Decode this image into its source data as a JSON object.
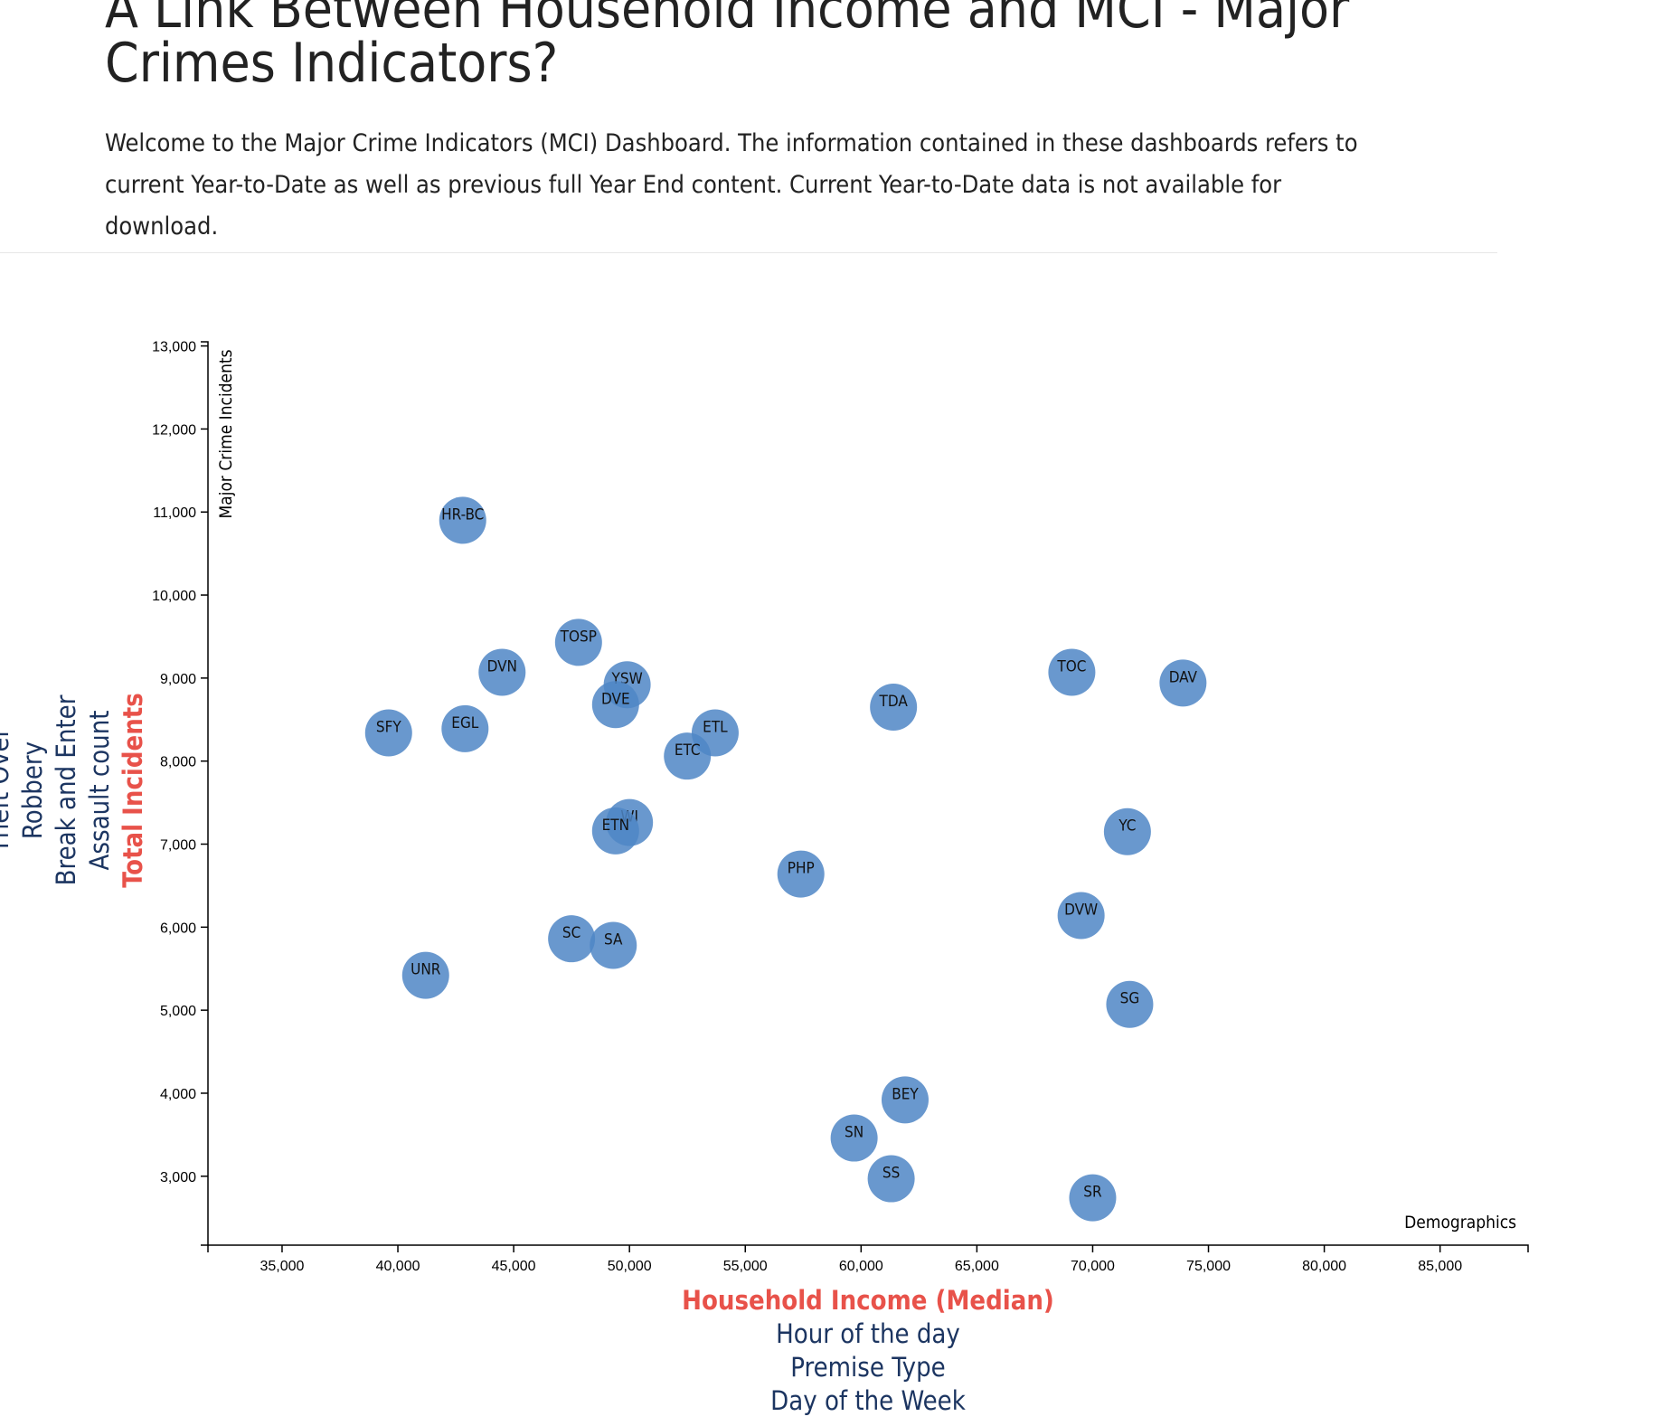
{
  "page": {
    "title": "A Link Between Household Income and MCI - Major Crimes Indicators?",
    "intro": "Welcome to the Major Crime Indicators (MCI) Dashboard. The information contained in these dashboards refers to current Year-to-Date as well as previous full Year End content. Current Year-to-Date data is not available for download."
  },
  "colors": {
    "bubble": "#4f86c6",
    "active_axis": "#e8524a",
    "inactive_axis": "#1c3561",
    "axis": "#000000"
  },
  "x_axis_options": [
    {
      "label": "Household Income (Median)",
      "active": true
    },
    {
      "label": "Hour of the day",
      "active": false
    },
    {
      "label": "Premise Type",
      "active": false
    },
    {
      "label": "Day of the Week",
      "active": false
    }
  ],
  "y_axis_options": [
    {
      "label": "Total Incidents",
      "active": true
    },
    {
      "label": "Assault count",
      "active": false
    },
    {
      "label": "Break and Enter",
      "active": false
    },
    {
      "label": "Robbery",
      "active": false
    },
    {
      "label": "Theft Over",
      "active": false
    }
  ],
  "chart_data": {
    "type": "scatter",
    "title": "",
    "xlabel": "Demographics",
    "ylabel": "Major Crime Incidents",
    "xlim": [
      31800,
      88800
    ],
    "ylim": [
      2170,
      13050
    ],
    "x_ticks": [
      35000,
      40000,
      45000,
      50000,
      55000,
      60000,
      65000,
      70000,
      75000,
      80000,
      85000
    ],
    "y_ticks": [
      3000,
      4000,
      5000,
      6000,
      7000,
      8000,
      9000,
      10000,
      11000,
      12000,
      13000
    ],
    "grid": false,
    "points": [
      {
        "label": "HR-BC",
        "x": 42800,
        "y": 10900
      },
      {
        "label": "TOSP",
        "x": 47800,
        "y": 9430
      },
      {
        "label": "DVN",
        "x": 44500,
        "y": 9070
      },
      {
        "label": "YSW",
        "x": 49900,
        "y": 8920
      },
      {
        "label": "DVE",
        "x": 49400,
        "y": 8680
      },
      {
        "label": "SFY",
        "x": 39600,
        "y": 8340
      },
      {
        "label": "EGL",
        "x": 42900,
        "y": 8390
      },
      {
        "label": "ETL",
        "x": 53700,
        "y": 8340
      },
      {
        "label": "ETC",
        "x": 52500,
        "y": 8060
      },
      {
        "label": "WI",
        "x": 50000,
        "y": 7260
      },
      {
        "label": "ETN",
        "x": 49400,
        "y": 7160
      },
      {
        "label": "PHP",
        "x": 57400,
        "y": 6640
      },
      {
        "label": "SC",
        "x": 47500,
        "y": 5860
      },
      {
        "label": "SA",
        "x": 49300,
        "y": 5780
      },
      {
        "label": "UNR",
        "x": 41200,
        "y": 5420
      },
      {
        "label": "TDA",
        "x": 61400,
        "y": 8650
      },
      {
        "label": "TOC",
        "x": 69100,
        "y": 9070
      },
      {
        "label": "DAV",
        "x": 73900,
        "y": 8940
      },
      {
        "label": "YC",
        "x": 71500,
        "y": 7150
      },
      {
        "label": "DVW",
        "x": 69500,
        "y": 6140
      },
      {
        "label": "SG",
        "x": 71600,
        "y": 5070
      },
      {
        "label": "BEY",
        "x": 61900,
        "y": 3920
      },
      {
        "label": "SN",
        "x": 59700,
        "y": 3460
      },
      {
        "label": "SS",
        "x": 61300,
        "y": 2970
      },
      {
        "label": "SR",
        "x": 70000,
        "y": 2740
      }
    ]
  }
}
